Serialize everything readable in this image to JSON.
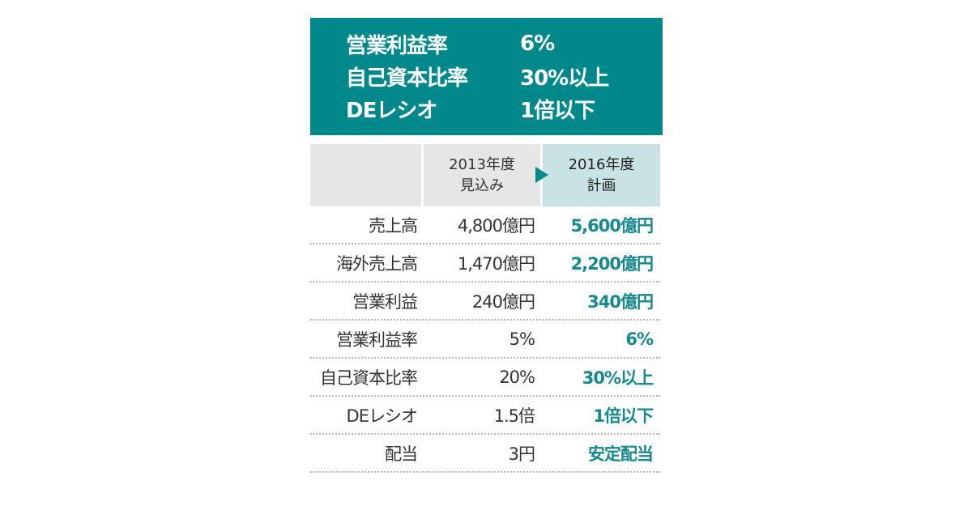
{
  "targets_box": {
    "background_color": "#00888a",
    "items": [
      {
        "label": "営業利益率",
        "value": "6%"
      },
      {
        "label": "自己資本比率",
        "value": "30%以上"
      },
      {
        "label": "DEレシオ",
        "value": "1倍以下"
      }
    ]
  },
  "table": {
    "headers": {
      "col_2013_line1": "2013年度",
      "col_2013_line2": "見込み",
      "col_2016_line1": "2016年度",
      "col_2016_line2": "計画",
      "arrow_icon": "right-triangle-arrow"
    },
    "rows": [
      {
        "label": "売上高",
        "fy2013": "4,800億円",
        "fy2016": "5,600億円"
      },
      {
        "label": "海外売上高",
        "fy2013": "1,470億円",
        "fy2016": "2,200億円"
      },
      {
        "label": "営業利益",
        "fy2013": "240億円",
        "fy2016": "340億円"
      },
      {
        "label": "営業利益率",
        "fy2013": "5%",
        "fy2016": "6%"
      },
      {
        "label": "自己資本比率",
        "fy2013": "20%",
        "fy2016": "30%以上"
      },
      {
        "label": "DEレシオ",
        "fy2013": "1.5倍",
        "fy2016": "1倍以下"
      },
      {
        "label": "配当",
        "fy2013": "3円",
        "fy2016": "安定配当"
      }
    ],
    "colors": {
      "header_gray": "#e6e6e6",
      "header_plan": "#c9e2e3",
      "plan_text": "#16898c",
      "body_text": "#333333"
    }
  }
}
